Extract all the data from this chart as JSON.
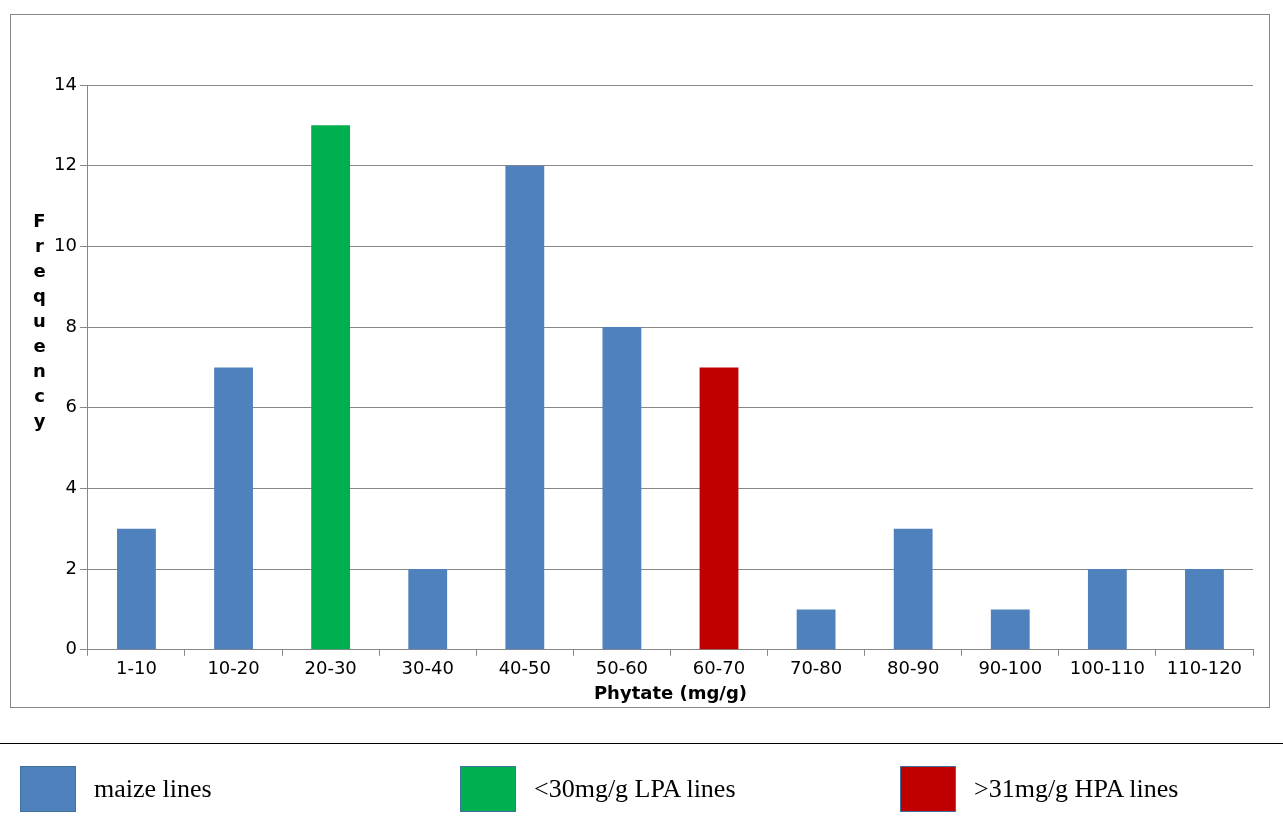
{
  "chart_data": {
    "type": "bar",
    "xlabel": "Phytate (mg/g)",
    "ylabel": "Frequency",
    "categories": [
      "1-10",
      "10-20",
      "20-30",
      "30-40",
      "40-50",
      "50-60",
      "60-70",
      "70-80",
      "80-90",
      "90-100",
      "100-110",
      "110-120"
    ],
    "series": [
      {
        "name": "maize lines",
        "color": "#4f81bd",
        "values": [
          3,
          7,
          null,
          2,
          12,
          8,
          null,
          1,
          3,
          1,
          2,
          2
        ]
      },
      {
        "name": "<30mg/g LPA lines",
        "color": "#00b050",
        "values": [
          null,
          null,
          13,
          null,
          null,
          null,
          null,
          null,
          null,
          null,
          null,
          null
        ]
      },
      {
        "name": ">31mg/g HPA lines",
        "color": "#c00000",
        "values": [
          null,
          null,
          null,
          null,
          null,
          null,
          7,
          null,
          null,
          null,
          null,
          null
        ]
      }
    ],
    "ylim": [
      0,
      14
    ],
    "yticks": [
      0,
      2,
      4,
      6,
      8,
      10,
      12,
      14
    ],
    "grid": "y",
    "legend": "bottom"
  }
}
